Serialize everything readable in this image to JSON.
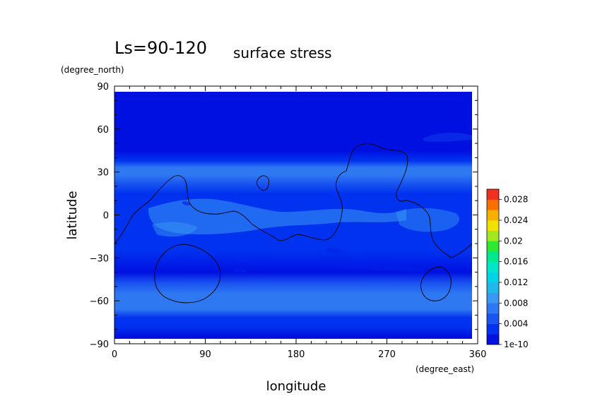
{
  "chart_data": {
    "type": "heatmap",
    "title": "Ls=90-120",
    "subtitle": "surface stress",
    "xlabel": "longitude",
    "ylabel": "latitude",
    "x_units": "(degree_east)",
    "y_units": "(degree_north)",
    "xlim": [
      0,
      360
    ],
    "ylim": [
      -90,
      90
    ],
    "x_ticks": [
      "0",
      "90",
      "180",
      "270",
      "360"
    ],
    "y_ticks": [
      "90",
      "60",
      "30",
      "0",
      "−30",
      "−60",
      "−90"
    ],
    "colorbar": {
      "ticks": [
        "1e-10",
        "0.004",
        "0.008",
        "0.012",
        "0.016",
        "0.02",
        "0.024",
        "0.028"
      ],
      "range": [
        0,
        0.03
      ],
      "levels": 15,
      "colors": [
        "#0010e0",
        "#0032f0",
        "#1a55f0",
        "#2e78f2",
        "#3a98f2",
        "#20b8ea",
        "#00d4e6",
        "#00e6c8",
        "#00e890",
        "#30e830",
        "#a0e820",
        "#f0e000",
        "#f8b000",
        "#f87000",
        "#f03020"
      ]
    },
    "latitude_profile": [
      {
        "lat": 85,
        "value": 0.001
      },
      {
        "lat": 45,
        "value": 0.001
      },
      {
        "lat": 38,
        "value": 0.0035
      },
      {
        "lat": 33,
        "value": 0.0072
      },
      {
        "lat": 28,
        "value": 0.0065
      },
      {
        "lat": 22,
        "value": 0.0055
      },
      {
        "lat": 15,
        "value": 0.0032
      },
      {
        "lat": 5,
        "value": 0.0025
      },
      {
        "lat": -10,
        "value": 0.0034
      },
      {
        "lat": -25,
        "value": 0.0024
      },
      {
        "lat": -40,
        "value": 0.0018
      },
      {
        "lat": -48,
        "value": 0.004
      },
      {
        "lat": -55,
        "value": 0.0066
      },
      {
        "lat": -60,
        "value": 0.0078
      },
      {
        "lat": -66,
        "value": 0.0066
      },
      {
        "lat": -72,
        "value": 0.0038
      },
      {
        "lat": -78,
        "value": 0.0026
      },
      {
        "lat": -85,
        "value": 0.0012
      }
    ]
  }
}
